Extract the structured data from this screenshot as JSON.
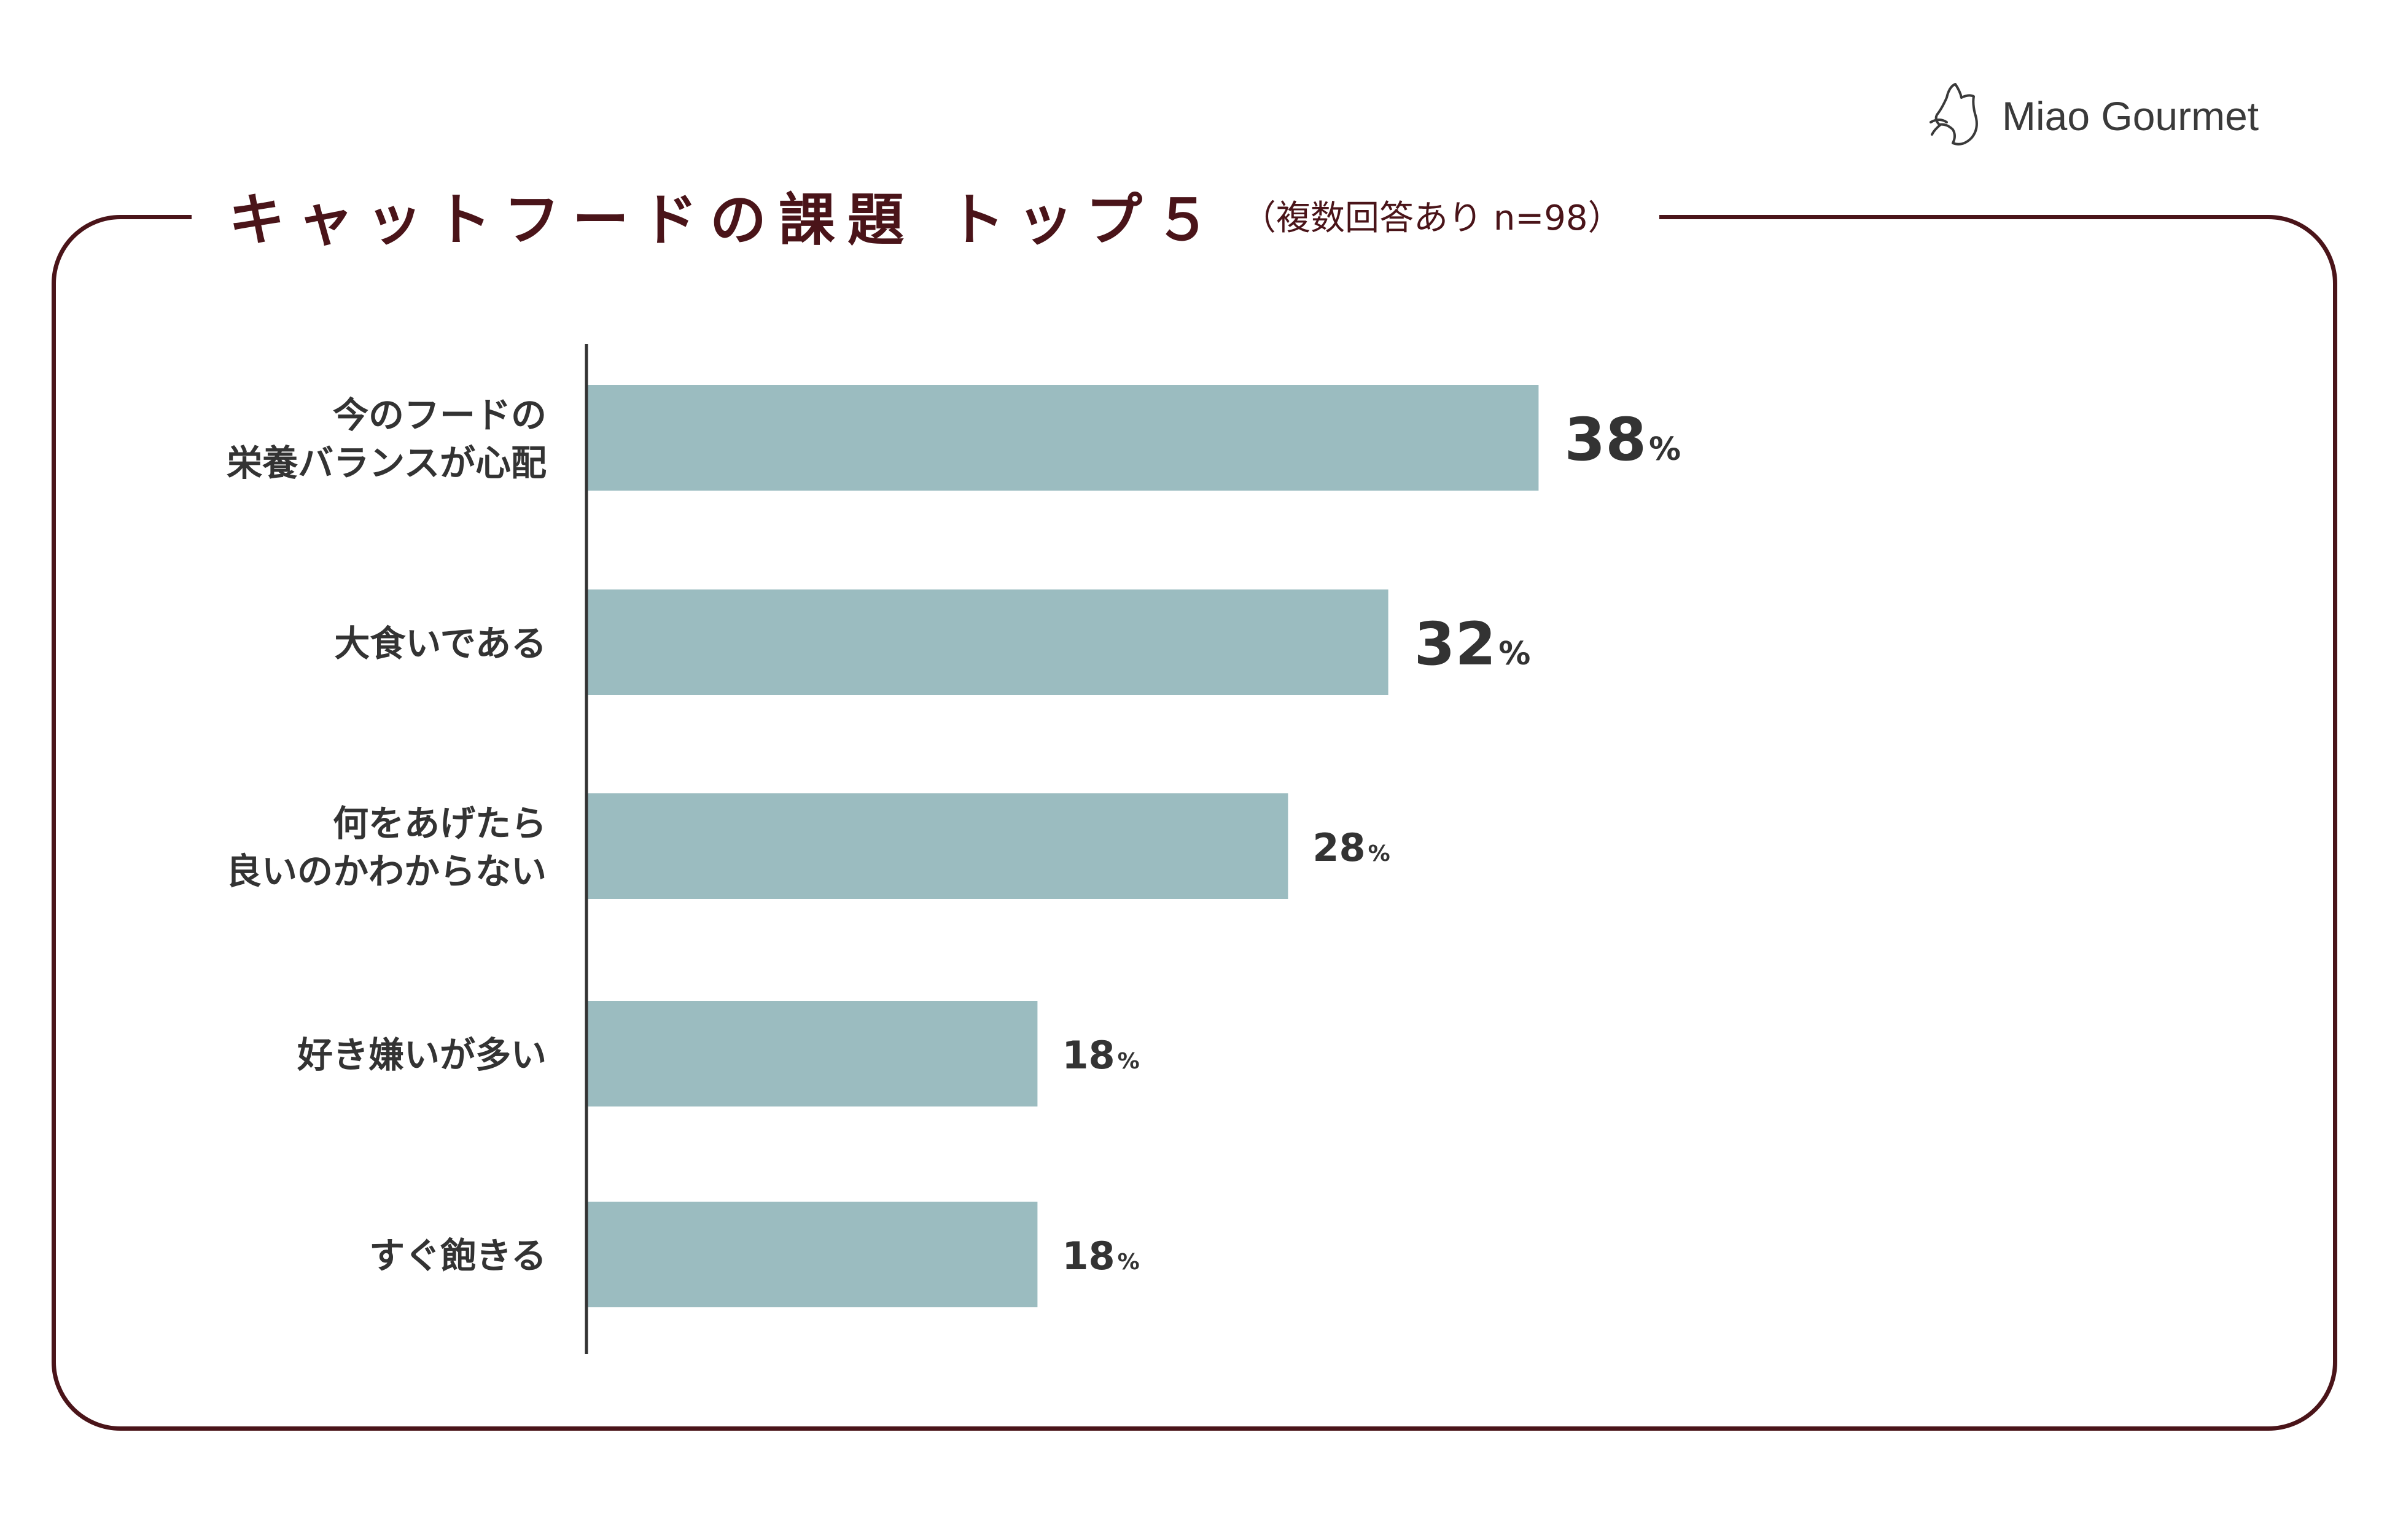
{
  "logo": {
    "brand": "Miao Gourmet",
    "icon": "cat-head-icon"
  },
  "chart_data": {
    "type": "bar",
    "orientation": "horizontal",
    "title": "キャットフードの課題 トップ５",
    "subtitle": "（複数回答あり n=98）",
    "categories": [
      [
        "今のフードの",
        "栄養バランスが心配"
      ],
      [
        "大食いである"
      ],
      [
        "何をあげたら",
        "良いのかわからない"
      ],
      [
        "好き嫌いが多い"
      ],
      [
        "すぐ飽きる"
      ]
    ],
    "values": [
      38,
      32,
      28,
      18,
      18
    ],
    "value_labels": [
      "38",
      "32",
      "28",
      "18",
      "18"
    ],
    "unit": "%",
    "xlim": [
      0,
      100
    ],
    "emphasized_count": 2,
    "colors": {
      "bar": "#9bbcc0",
      "frame": "#4a1419",
      "axis": "#333333",
      "text": "#333333"
    }
  }
}
